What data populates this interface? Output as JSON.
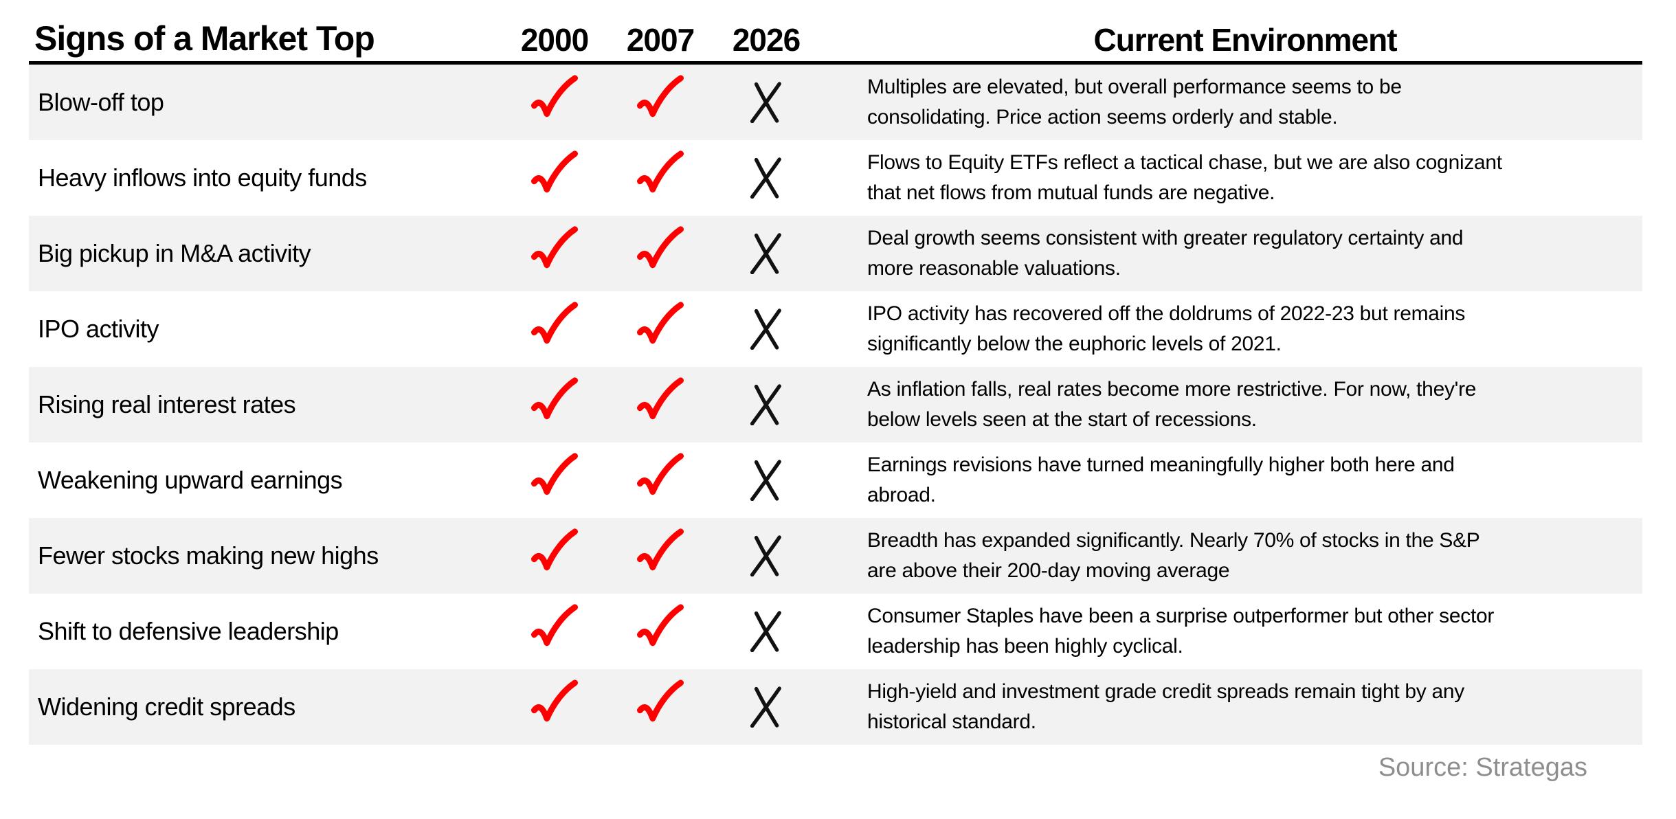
{
  "chart_data": {
    "type": "table",
    "title": "Signs of a Market Top",
    "year_columns": [
      "2000",
      "2007",
      "2026"
    ],
    "env_header": "Current Environment",
    "rows": [
      {
        "label": "Blow-off top",
        "marks": [
          "check",
          "check",
          "x"
        ],
        "description": "Multiples are elevated, but overall performance seems to be\nconsolidating. Price action seems orderly and stable."
      },
      {
        "label": "Heavy inflows into equity funds",
        "marks": [
          "check",
          "check",
          "x"
        ],
        "description": "Flows to Equity ETFs reflect a tactical chase, but we are also cognizant\nthat net flows from mutual funds are negative."
      },
      {
        "label": "Big pickup in M&A activity",
        "marks": [
          "check",
          "check",
          "x"
        ],
        "description": "Deal growth seems consistent with greater regulatory certainty and\nmore reasonable valuations."
      },
      {
        "label": "IPO activity",
        "marks": [
          "check",
          "check",
          "x"
        ],
        "description": "IPO activity has recovered off the doldrums of 2022-23 but remains\nsignificantly below the euphoric levels of 2021."
      },
      {
        "label": "Rising real interest rates",
        "marks": [
          "check",
          "check",
          "x"
        ],
        "description": "As inflation falls, real rates become more restrictive. For now, they're\nbelow levels seen at the start of recessions."
      },
      {
        "label": "Weakening upward earnings",
        "marks": [
          "check",
          "check",
          "x"
        ],
        "description": "Earnings revisions have turned meaningfully higher both here and\nabroad."
      },
      {
        "label": "Fewer stocks making new highs",
        "marks": [
          "check",
          "check",
          "x"
        ],
        "description": "Breadth has expanded significantly. Nearly 70% of stocks in the S&P\nare above their 200-day moving average"
      },
      {
        "label": "Shift to defensive leadership",
        "marks": [
          "check",
          "check",
          "x"
        ],
        "description": "Consumer Staples have been a surprise outperformer but other sector\nleadership has been highly cyclical."
      },
      {
        "label": "Widening credit spreads",
        "marks": [
          "check",
          "check",
          "x"
        ],
        "description": "High-yield and investment grade credit spreads remain tight by any\nhistorical standard."
      }
    ],
    "source": "Source: Strategas"
  },
  "icons": {
    "check": "check-icon",
    "x": "x-icon"
  },
  "colors": {
    "check": "#ff0000",
    "x": "#111111",
    "row_alt": "#f2f2f2",
    "source_text": "#8e8e8e",
    "header_rule": "#000000"
  }
}
